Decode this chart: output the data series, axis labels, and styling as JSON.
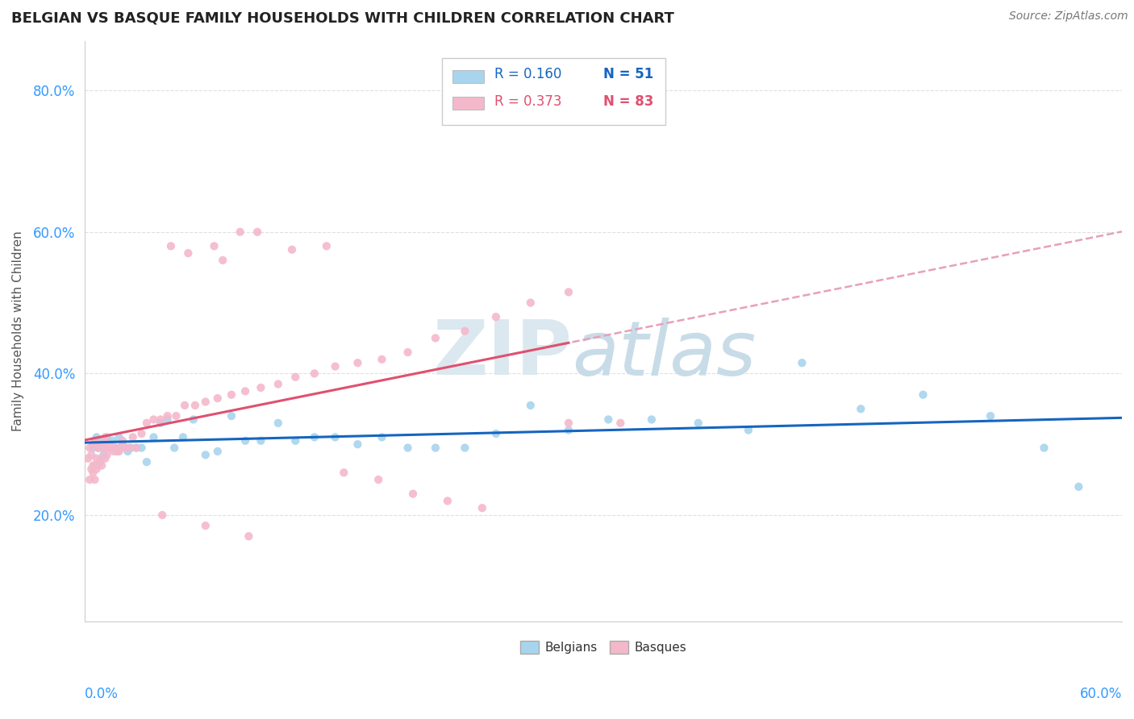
{
  "title": "BELGIAN VS BASQUE FAMILY HOUSEHOLDS WITH CHILDREN CORRELATION CHART",
  "source": "Source: ZipAtlas.com",
  "ylabel": "Family Households with Children",
  "yticks": [
    0.2,
    0.4,
    0.6,
    0.8
  ],
  "ytick_labels": [
    "20.0%",
    "40.0%",
    "60.0%",
    "80.0%"
  ],
  "xlim": [
    0.0,
    0.6
  ],
  "ylim": [
    0.05,
    0.87
  ],
  "belgians_x": [
    0.005,
    0.006,
    0.007,
    0.008,
    0.009,
    0.01,
    0.011,
    0.013,
    0.014,
    0.016,
    0.018,
    0.02,
    0.022,
    0.025,
    0.027,
    0.03,
    0.033,
    0.036,
    0.04,
    0.044,
    0.048,
    0.052,
    0.057,
    0.063,
    0.07,
    0.077,
    0.085,
    0.093,
    0.102,
    0.112,
    0.122,
    0.133,
    0.145,
    0.158,
    0.172,
    0.187,
    0.203,
    0.22,
    0.238,
    0.258,
    0.28,
    0.303,
    0.328,
    0.355,
    0.384,
    0.415,
    0.449,
    0.485,
    0.524,
    0.555,
    0.575
  ],
  "belgians_y": [
    0.295,
    0.3,
    0.31,
    0.295,
    0.305,
    0.3,
    0.285,
    0.31,
    0.295,
    0.305,
    0.295,
    0.31,
    0.3,
    0.29,
    0.295,
    0.295,
    0.295,
    0.275,
    0.31,
    0.33,
    0.335,
    0.295,
    0.31,
    0.335,
    0.285,
    0.29,
    0.34,
    0.305,
    0.305,
    0.33,
    0.305,
    0.31,
    0.31,
    0.3,
    0.31,
    0.295,
    0.295,
    0.295,
    0.315,
    0.355,
    0.32,
    0.335,
    0.335,
    0.33,
    0.32,
    0.415,
    0.35,
    0.37,
    0.34,
    0.295,
    0.24
  ],
  "basques_x": [
    0.002,
    0.003,
    0.003,
    0.004,
    0.004,
    0.005,
    0.005,
    0.005,
    0.006,
    0.006,
    0.006,
    0.007,
    0.007,
    0.007,
    0.008,
    0.008,
    0.008,
    0.009,
    0.009,
    0.01,
    0.01,
    0.011,
    0.011,
    0.012,
    0.012,
    0.013,
    0.013,
    0.014,
    0.015,
    0.016,
    0.017,
    0.018,
    0.019,
    0.02,
    0.021,
    0.022,
    0.024,
    0.026,
    0.028,
    0.03,
    0.033,
    0.036,
    0.04,
    0.044,
    0.048,
    0.053,
    0.058,
    0.064,
    0.07,
    0.077,
    0.085,
    0.093,
    0.102,
    0.112,
    0.122,
    0.133,
    0.145,
    0.158,
    0.172,
    0.187,
    0.203,
    0.22,
    0.238,
    0.258,
    0.28,
    0.1,
    0.12,
    0.14,
    0.28,
    0.31,
    0.05,
    0.09,
    0.075,
    0.06,
    0.08,
    0.15,
    0.17,
    0.19,
    0.21,
    0.23,
    0.045,
    0.07,
    0.095
  ],
  "basques_y": [
    0.28,
    0.295,
    0.25,
    0.265,
    0.285,
    0.27,
    0.3,
    0.26,
    0.27,
    0.305,
    0.25,
    0.28,
    0.3,
    0.265,
    0.295,
    0.27,
    0.295,
    0.275,
    0.3,
    0.27,
    0.28,
    0.295,
    0.295,
    0.31,
    0.28,
    0.295,
    0.285,
    0.3,
    0.295,
    0.295,
    0.29,
    0.295,
    0.29,
    0.29,
    0.295,
    0.305,
    0.295,
    0.295,
    0.31,
    0.295,
    0.315,
    0.33,
    0.335,
    0.335,
    0.34,
    0.34,
    0.355,
    0.355,
    0.36,
    0.365,
    0.37,
    0.375,
    0.38,
    0.385,
    0.395,
    0.4,
    0.41,
    0.415,
    0.42,
    0.43,
    0.45,
    0.46,
    0.48,
    0.5,
    0.515,
    0.6,
    0.575,
    0.58,
    0.33,
    0.33,
    0.58,
    0.6,
    0.58,
    0.57,
    0.56,
    0.26,
    0.25,
    0.23,
    0.22,
    0.21,
    0.2,
    0.185,
    0.17
  ],
  "belgian_color": "#a8d4ed",
  "basque_color": "#f4b8cb",
  "belgian_line_color": "#1565c0",
  "basque_line_color": "#e05070",
  "dashed_line_color": "#e8a0b8",
  "grid_color": "#e0e0e0",
  "axis_label_color": "#3399ff",
  "background_color": "#ffffff",
  "legend_r_belgian": "R = 0.160",
  "legend_n_belgian": "N = 51",
  "legend_r_basque": "R = 0.373",
  "legend_n_basque": "N = 83",
  "watermark_zip": "ZIP",
  "watermark_atlas": "atlas"
}
